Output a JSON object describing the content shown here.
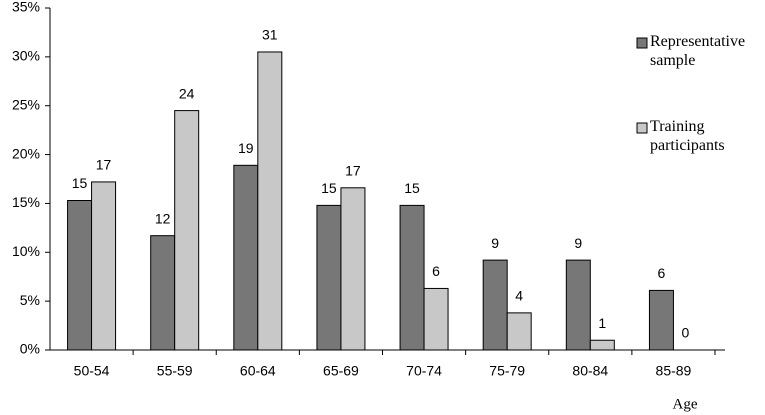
{
  "chart_data": {
    "type": "bar",
    "x_label": "Age",
    "categories": [
      "50-54",
      "55-59",
      "60-64",
      "65-69",
      "70-74",
      "75-79",
      "80-84",
      "85-89"
    ],
    "series": [
      {
        "name": "Representative sample",
        "color": "#777777",
        "values": [
          15.3,
          11.7,
          18.9,
          14.8,
          14.8,
          9.2,
          9.2,
          6.1
        ],
        "value_labels": [
          "15",
          "12",
          "19",
          "15",
          "15",
          "9",
          "9",
          "6"
        ]
      },
      {
        "name": "Training participants",
        "color": "#c8c8c8",
        "values": [
          17.2,
          24.5,
          30.5,
          16.6,
          6.3,
          3.8,
          1.0,
          0
        ],
        "value_labels": [
          "17",
          "24",
          "31",
          "17",
          "6",
          "4",
          "1",
          "0"
        ]
      }
    ],
    "ylim": [
      0,
      35
    ],
    "yticks": [
      {
        "value": 0,
        "label": "0%"
      },
      {
        "value": 5,
        "label": "5%"
      },
      {
        "value": 10,
        "label": "10%"
      },
      {
        "value": 15,
        "label": "15%"
      },
      {
        "value": 20,
        "label": "20%"
      },
      {
        "value": 25,
        "label": "25%"
      },
      {
        "value": 30,
        "label": "30%"
      },
      {
        "value": 35,
        "label": "35%"
      }
    ],
    "grid": false,
    "legend": "right"
  }
}
